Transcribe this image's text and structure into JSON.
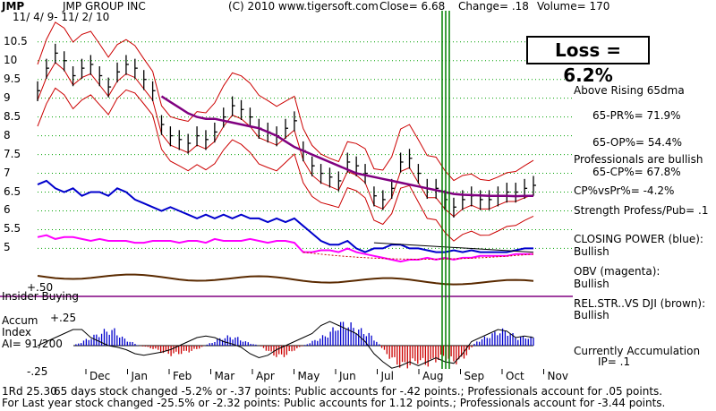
{
  "header": {
    "symbol": "JMP",
    "company": "JMP GROUP INC",
    "date_range": "11/ 4/ 9- 11/ 2/ 10",
    "source": "(C) 2010 www.tigersoft.com",
    "close": "Close= 6.68",
    "change": "Change= .18",
    "volume": "Volume= 170"
  },
  "loss_box": "Loss = 6.2%",
  "right_panel": {
    "trend": "Above Rising 65dma",
    "pr": "65-PR%= 71.9%",
    "op": "65-OP%= 54.4%",
    "prof_bullish": "Professionals are bullish",
    "cp": "65-CP%= 67.8%",
    "cpvspr": "CP%vsPr%= -4.2%",
    "strength": "Strength Profess/Pub= .1",
    "closing_power_title": "CLOSING POWER (blue):",
    "closing_power_value": "Bullish",
    "obv_title": "OBV (magenta):",
    "obv_value": "Bullish",
    "relstr_title": "REL.STR..VS DJI (brown):",
    "relstr_value": "Bullish",
    "accum_title": "Currently Accumulation",
    "accum_ip": "IP= .1"
  },
  "left_labels": {
    "insider": "Insider Buying",
    "accum1": "Accum",
    "accum2": "Index",
    "ai": "AI= 91/200",
    "plus50": "+.50",
    "plus25": "+.25",
    "minus25": "-.25"
  },
  "footer": {
    "line1a": "1Rd 25.30",
    "line1b": "65 days stock changed -5.2% or -.37 points:  Public accounts for -.42 points.;  Professionals account for  .05 points.",
    "line2": "For Last year stock changed -25.5% or -2.32 points:  Public accounts for  1.12 points.;  Professionals account for -3.44 points."
  },
  "colors": {
    "price": "#000000",
    "upper_band": "#cc0000",
    "ma65": "#800080",
    "closing_power": "#0000cc",
    "obv": "#ff00ff",
    "relstr": "#5a2a00",
    "accum_pos": "#0000cc",
    "accum_neg": "#cc0000",
    "signal": "#008000",
    "grid": "#00a000"
  },
  "chart_data": {
    "type": "line",
    "yticks": [
      10.5,
      10,
      9.5,
      9,
      8.5,
      8,
      7.5,
      7,
      6.5,
      6,
      5.5,
      5
    ],
    "ylim": [
      4.7,
      10.9
    ],
    "months": [
      "Dec",
      "Jan",
      "Feb",
      "Mar",
      "Apr",
      "May",
      "Jun",
      "Jul",
      "Aug",
      "Sep",
      "Oct",
      "Nov"
    ],
    "price_close": [
      9.2,
      9.8,
      10.2,
      10.0,
      9.6,
      9.8,
      9.9,
      9.6,
      9.3,
      9.7,
      9.9,
      9.8,
      9.5,
      9.2,
      8.3,
      8.0,
      7.9,
      7.8,
      8.0,
      7.9,
      8.1,
      8.5,
      8.8,
      8.7,
      8.5,
      8.2,
      8.1,
      8.0,
      8.2,
      8.4,
      7.6,
      7.2,
      7.0,
      6.9,
      6.8,
      7.3,
      7.2,
      7.0,
      6.4,
      6.3,
      6.6,
      7.3,
      7.4,
      7.0,
      6.6,
      6.6,
      6.3,
      6.1,
      6.3,
      6.4,
      6.3,
      6.3,
      6.4,
      6.5,
      6.5,
      6.6,
      6.68
    ],
    "ma65": [
      null,
      null,
      null,
      null,
      null,
      null,
      null,
      null,
      null,
      null,
      null,
      null,
      null,
      null,
      9.05,
      8.9,
      8.75,
      8.6,
      8.5,
      8.45,
      8.45,
      8.4,
      8.35,
      8.3,
      8.25,
      8.2,
      8.1,
      8.0,
      7.85,
      7.7,
      7.6,
      7.5,
      7.4,
      7.3,
      7.2,
      7.1,
      7.0,
      6.95,
      6.9,
      6.85,
      6.8,
      6.75,
      6.7,
      6.65,
      6.6,
      6.55,
      6.5,
      6.45,
      6.43,
      6.42,
      6.41,
      6.4,
      6.4,
      6.4,
      6.39,
      6.4,
      6.4
    ],
    "closing_power": [
      6.7,
      6.8,
      6.6,
      6.5,
      6.6,
      6.4,
      6.5,
      6.5,
      6.4,
      6.6,
      6.5,
      6.3,
      6.2,
      6.1,
      6.0,
      6.1,
      6.0,
      5.9,
      5.8,
      5.9,
      5.8,
      5.9,
      5.8,
      5.9,
      5.8,
      5.8,
      5.7,
      5.8,
      5.7,
      5.8,
      5.6,
      5.4,
      5.2,
      5.1,
      5.1,
      5.2,
      5.0,
      4.9,
      5.0,
      5.0,
      5.1,
      5.1,
      5.0,
      5.0,
      4.95,
      4.9,
      4.9,
      4.95,
      4.9,
      4.95,
      4.9,
      4.9,
      4.9,
      4.9,
      4.95,
      5.0,
      5.0
    ],
    "obv": [
      5.3,
      5.35,
      5.25,
      5.3,
      5.3,
      5.25,
      5.2,
      5.25,
      5.2,
      5.2,
      5.2,
      5.15,
      5.15,
      5.2,
      5.2,
      5.2,
      5.15,
      5.2,
      5.2,
      5.15,
      5.25,
      5.2,
      5.2,
      5.2,
      5.25,
      5.2,
      5.15,
      5.2,
      5.2,
      5.15,
      4.9,
      4.9,
      4.95,
      4.95,
      4.9,
      5.0,
      4.9,
      4.85,
      4.8,
      4.75,
      4.7,
      4.65,
      4.7,
      4.7,
      4.75,
      4.7,
      4.75,
      4.7,
      4.75,
      4.75,
      4.8,
      4.8,
      4.8,
      4.8,
      4.85,
      4.85,
      4.85
    ],
    "accum_index": [
      0.0,
      0.05,
      0.1,
      0.15,
      0.2,
      0.2,
      0.1,
      0.05,
      0.0,
      -0.02,
      -0.05,
      -0.1,
      -0.12,
      -0.1,
      -0.08,
      -0.05,
      0.0,
      0.05,
      0.1,
      0.12,
      0.1,
      0.05,
      0.02,
      -0.02,
      -0.1,
      -0.15,
      -0.12,
      -0.05,
      0.0,
      0.05,
      0.1,
      0.15,
      0.25,
      0.3,
      0.25,
      0.2,
      0.15,
      0.05,
      -0.1,
      -0.2,
      -0.28,
      -0.25,
      -0.2,
      -0.25,
      -0.2,
      -0.15,
      -0.2,
      -0.22,
      -0.1,
      0.05,
      0.1,
      0.15,
      0.2,
      0.18,
      0.1,
      0.12,
      0.1
    ]
  }
}
